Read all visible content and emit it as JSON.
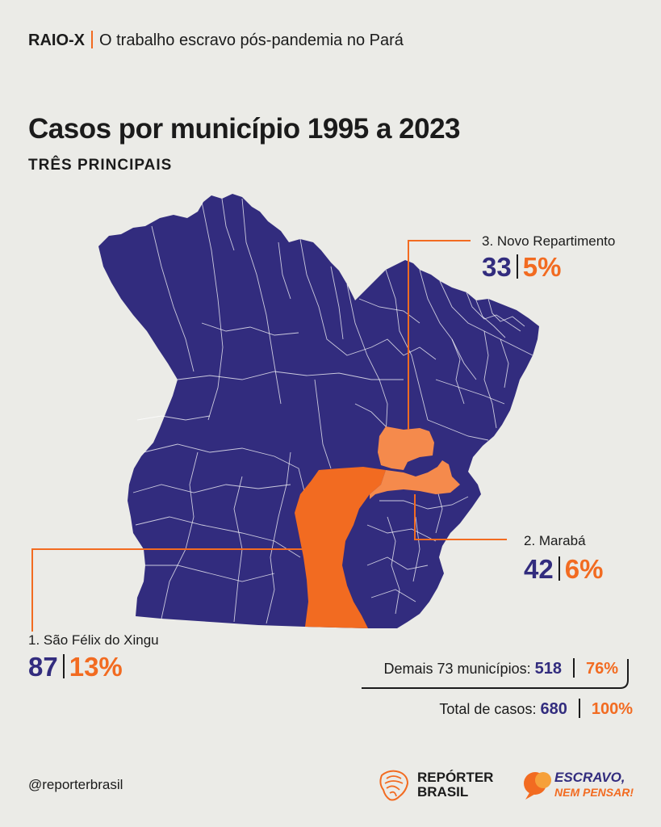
{
  "header": {
    "kicker_bold": "RAIO-X",
    "kicker_text": "O trabalho escravo pós-pandemia no Pará",
    "title": "Casos por município 1995 a 2023",
    "subtitle": "TRÊS PRINCIPAIS"
  },
  "colors": {
    "background": "#ebebe7",
    "state_fill": "#322c7e",
    "highlight_dark": "#f26b21",
    "highlight_light": "#f58a4c",
    "accent": "#f26b21"
  },
  "callouts": [
    {
      "rank_label": "3. Novo Repartimento",
      "cases": "33",
      "percent": "5%"
    },
    {
      "rank_label": "2. Marabá",
      "cases": "42",
      "percent": "6%"
    },
    {
      "rank_label": "1. São Félix do Xingu",
      "cases": "87",
      "percent": "13%"
    }
  ],
  "summary": {
    "others_label": "Demais 73 municípios:",
    "others_cases": "518",
    "others_percent": "76%",
    "total_label": "Total de casos:",
    "total_cases": "680",
    "total_percent": "100%"
  },
  "footer": {
    "handle": "@reporterbrasil",
    "logo1_line1": "REPÓRTER",
    "logo1_line2": "BRASIL",
    "logo2_line1": "ESCRAVO,",
    "logo2_line2": "NEM PENSAR!"
  }
}
